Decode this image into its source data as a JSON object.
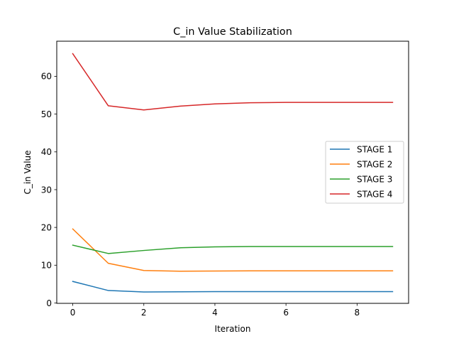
{
  "chart_data": {
    "type": "line",
    "title": "C_in Value Stabilization",
    "xlabel": "Iteration",
    "ylabel": "C_in Value",
    "x": [
      0,
      1,
      2,
      3,
      4,
      5,
      6,
      7,
      8,
      9
    ],
    "xlim": [
      -0.45,
      9.45
    ],
    "ylim": [
      -0.1,
      69.3
    ],
    "xticks": [
      0,
      2,
      4,
      6,
      8
    ],
    "yticks": [
      0,
      10,
      20,
      30,
      40,
      50,
      60
    ],
    "grid": false,
    "legend_position": "center-right",
    "series": [
      {
        "name": "STAGE 1",
        "color": "#1f77b4",
        "values": [
          5.7,
          3.3,
          2.9,
          2.95,
          3.0,
          3.0,
          3.0,
          3.0,
          3.0,
          3.0
        ]
      },
      {
        "name": "STAGE 2",
        "color": "#ff7f0e",
        "values": [
          19.6,
          10.5,
          8.6,
          8.4,
          8.45,
          8.5,
          8.5,
          8.5,
          8.5,
          8.5
        ]
      },
      {
        "name": "STAGE 3",
        "color": "#2ca02c",
        "values": [
          15.3,
          13.1,
          13.9,
          14.6,
          14.85,
          14.95,
          14.95,
          14.95,
          14.95,
          14.95
        ]
      },
      {
        "name": "STAGE 4",
        "color": "#d62728",
        "values": [
          66.0,
          52.2,
          51.1,
          52.1,
          52.7,
          53.0,
          53.1,
          53.1,
          53.1,
          53.1
        ]
      }
    ]
  }
}
